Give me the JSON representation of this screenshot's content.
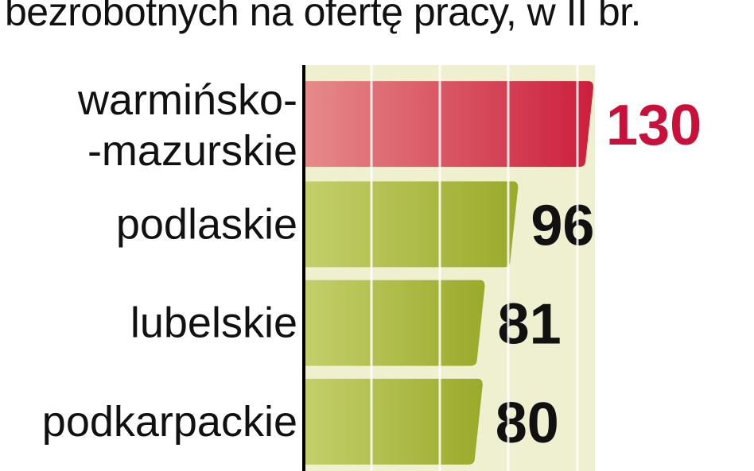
{
  "title": "bezrobotnych na ofertę pracy, w II br.",
  "colors": {
    "highlight_bar_light": "#e58a8a",
    "highlight_bar_dark": "#cc1f3d",
    "highlight_value": "#c8103a",
    "bar_light": "#c3cf6a",
    "bar_dark": "#9aaa2a",
    "background_band": "#eef0cf",
    "axis": "#000000",
    "text": "#111111"
  },
  "chart_data": {
    "type": "bar",
    "orientation": "horizontal",
    "title": "bezrobotnych na ofertę pracy, w II br.",
    "categories": [
      [
        "warmińsko-",
        "-mazurskie"
      ],
      [
        "podlaskie"
      ],
      [
        "lubelskie"
      ],
      [
        "podkarpackie"
      ]
    ],
    "values": [
      130,
      96,
      81,
      80
    ],
    "value_labels": [
      "130",
      "96",
      "81",
      "80"
    ],
    "highlight_index": 0,
    "xlim": [
      0,
      130
    ],
    "grid": true
  }
}
